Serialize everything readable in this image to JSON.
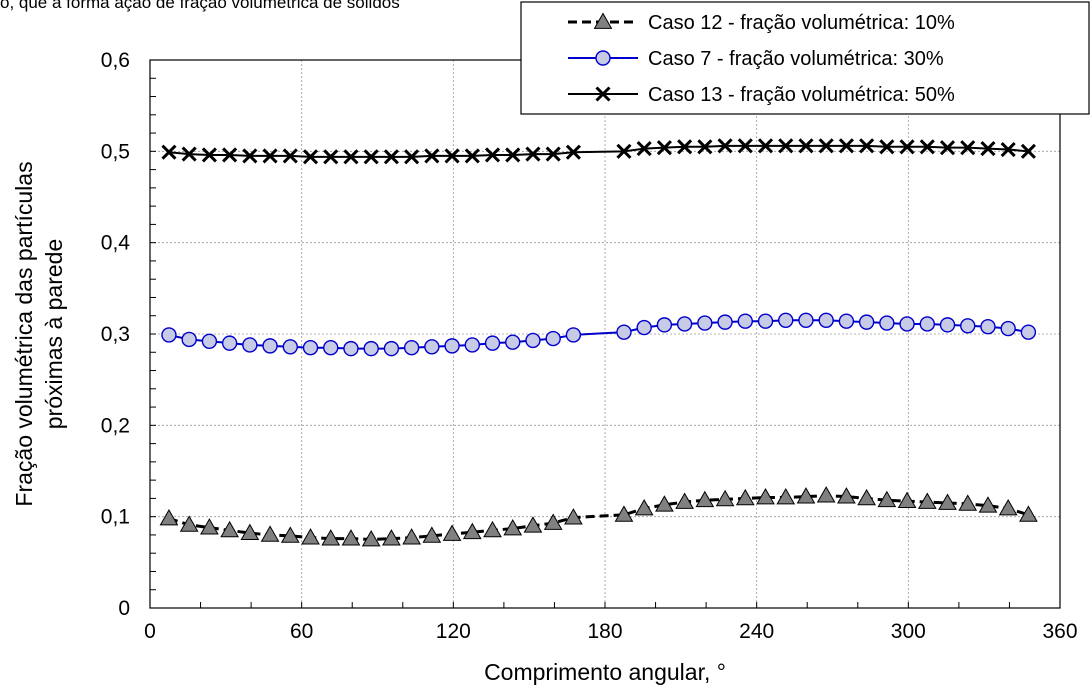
{
  "header_fragment": "o, que a forma ação de fração volumétrica de sólidos",
  "chart_data": {
    "type": "line",
    "xlabel": "Comprimento angular, °",
    "ylabel_lines": [
      "Fração volumétrica das partículas",
      "próximas à parede"
    ],
    "xlim": [
      0,
      360
    ],
    "ylim": [
      0,
      0.6
    ],
    "x_ticks": [
      0,
      60,
      120,
      180,
      240,
      300,
      360
    ],
    "x_tick_labels": [
      "0",
      "60",
      "120",
      "180",
      "240",
      "300",
      "360"
    ],
    "y_ticks": [
      0,
      0.1,
      0.2,
      0.3,
      0.4,
      0.5,
      0.6
    ],
    "y_tick_labels": [
      "0",
      "0,1",
      "0,2",
      "0,3",
      "0,4",
      "0,5",
      "0,6"
    ],
    "grid": true,
    "legend_position": "top-right",
    "x": [
      7.5,
      15.5,
      23.5,
      31.5,
      39.5,
      47.5,
      55.5,
      63.5,
      71.5,
      79.5,
      87.5,
      95.5,
      103.5,
      111.5,
      119.5,
      127.5,
      135.5,
      143.5,
      151.5,
      159.5,
      167.5,
      187.5,
      195.5,
      203.5,
      211.5,
      219.5,
      227.5,
      235.5,
      243.5,
      251.5,
      259.5,
      267.5,
      275.5,
      283.5,
      291.5,
      299.5,
      307.5,
      315.5,
      323.5,
      331.5,
      339.5,
      347.5
    ],
    "series": [
      {
        "name": "Caso 12 - fração volumétrica: 10%",
        "marker": "triangle",
        "line_style": "dashed",
        "color": "#000000",
        "marker_fill": "#808080",
        "values": [
          0.098,
          0.091,
          0.088,
          0.085,
          0.082,
          0.08,
          0.079,
          0.077,
          0.076,
          0.076,
          0.075,
          0.076,
          0.077,
          0.079,
          0.081,
          0.083,
          0.085,
          0.087,
          0.09,
          0.093,
          0.099,
          0.102,
          0.109,
          0.113,
          0.116,
          0.118,
          0.119,
          0.12,
          0.121,
          0.121,
          0.122,
          0.123,
          0.122,
          0.12,
          0.118,
          0.117,
          0.116,
          0.115,
          0.114,
          0.112,
          0.109,
          0.102
        ]
      },
      {
        "name": "Caso 7 - fração volumétrica: 30%",
        "marker": "circle",
        "line_style": "solid",
        "color": "#0000cc",
        "marker_fill": "#c8cbe6",
        "values": [
          0.299,
          0.294,
          0.292,
          0.29,
          0.288,
          0.287,
          0.286,
          0.285,
          0.285,
          0.284,
          0.284,
          0.284,
          0.285,
          0.286,
          0.287,
          0.288,
          0.29,
          0.291,
          0.293,
          0.295,
          0.299,
          0.302,
          0.307,
          0.31,
          0.311,
          0.312,
          0.313,
          0.314,
          0.314,
          0.315,
          0.315,
          0.315,
          0.314,
          0.313,
          0.312,
          0.311,
          0.311,
          0.31,
          0.309,
          0.308,
          0.306,
          0.302
        ]
      },
      {
        "name": "Caso 13 - fração volumétrica: 50%",
        "marker": "x",
        "line_style": "solid",
        "color": "#000000",
        "marker_fill": "#000000",
        "values": [
          0.499,
          0.497,
          0.496,
          0.496,
          0.495,
          0.495,
          0.495,
          0.494,
          0.494,
          0.494,
          0.494,
          0.494,
          0.494,
          0.495,
          0.495,
          0.495,
          0.496,
          0.496,
          0.497,
          0.497,
          0.499,
          0.5,
          0.503,
          0.504,
          0.505,
          0.505,
          0.506,
          0.506,
          0.506,
          0.506,
          0.506,
          0.506,
          0.506,
          0.506,
          0.505,
          0.505,
          0.505,
          0.504,
          0.504,
          0.503,
          0.502,
          0.5
        ]
      }
    ]
  }
}
